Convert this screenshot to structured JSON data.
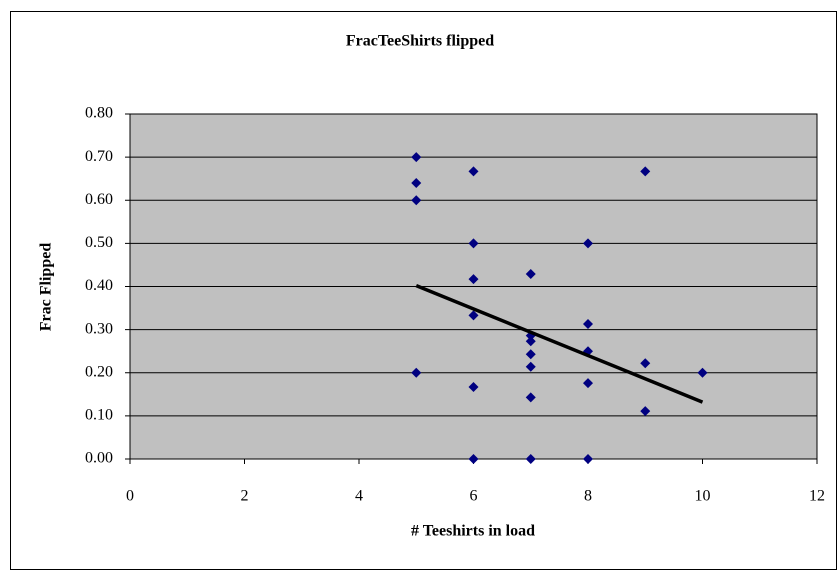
{
  "chart_data": {
    "type": "scatter",
    "title": "FracTeeShirts flipped",
    "x_label": "# Teeshirts in load",
    "y_label": "Frac Flipped",
    "series": [
      {
        "name": "FracTeeShirts flipped",
        "color": "#000080",
        "x": [
          5,
          5,
          5,
          5,
          6,
          6,
          6,
          6,
          6,
          6,
          7,
          7,
          7,
          7,
          7,
          7,
          7,
          8,
          8,
          8,
          8,
          8,
          9,
          9,
          9,
          10
        ],
        "y": [
          0.7,
          0.64,
          0.6,
          0.2,
          0.667,
          0.5,
          0.417,
          0.333,
          0.167,
          0.0,
          0.429,
          0.286,
          0.273,
          0.243,
          0.214,
          0.143,
          0.0,
          0.5,
          0.313,
          0.25,
          0.176,
          0.0,
          0.667,
          0.222,
          0.111,
          0.2
        ]
      }
    ],
    "trendline": {
      "color": "#000000",
      "x": [
        5,
        10
      ],
      "y": [
        0.402,
        0.132
      ]
    },
    "xlim": [
      0,
      12
    ],
    "xticks": [
      0,
      2,
      4,
      6,
      8,
      10,
      12
    ],
    "ylim": [
      0,
      0.8
    ],
    "yticks": [
      {
        "value": 0,
        "label": "0.00"
      },
      {
        "value": 0.1,
        "label": "0.10"
      },
      {
        "value": 0.2,
        "label": "0.20"
      },
      {
        "value": 0.3,
        "label": "0.30"
      },
      {
        "value": 0.4,
        "label": "0.40"
      },
      {
        "value": 0.5,
        "label": "0.50"
      },
      {
        "value": 0.6,
        "label": "0.60"
      },
      {
        "value": 0.7,
        "label": "0.70"
      },
      {
        "value": 0.8,
        "label": "0.80"
      }
    ],
    "grid": true,
    "plot_background": "#c0c0c0"
  }
}
